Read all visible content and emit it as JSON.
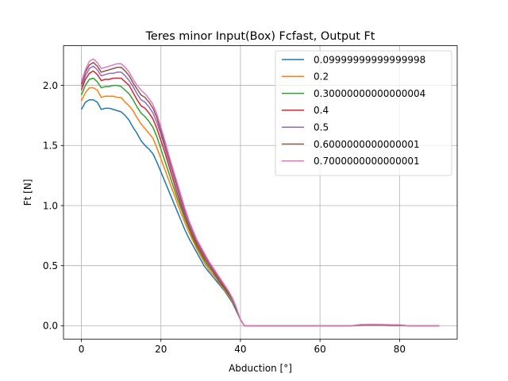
{
  "chart_data": {
    "type": "line",
    "title": "Teres minor Input(Box) Fcfast, Output Ft",
    "xlabel": "Abduction [°]",
    "ylabel": "Ft [N]",
    "xlim": [
      -4.5,
      94.5
    ],
    "ylim": [
      -0.111,
      2.33
    ],
    "xticks": [
      0,
      20,
      40,
      60,
      80
    ],
    "xtick_labels": [
      "0",
      "20",
      "40",
      "60",
      "80"
    ],
    "yticks": [
      0.0,
      0.5,
      1.0,
      1.5,
      2.0
    ],
    "ytick_labels": [
      "0.0",
      "0.5",
      "1.0",
      "1.5",
      "2.0"
    ],
    "grid": true,
    "legend_position": "top-right",
    "x": [
      0,
      1,
      2,
      3,
      4,
      5,
      6,
      7,
      8,
      9,
      10,
      11,
      12,
      13,
      14,
      15,
      16,
      17,
      18,
      19,
      20,
      21,
      22,
      23,
      24,
      25,
      26,
      27,
      28,
      29,
      30,
      31,
      32,
      33,
      34,
      35,
      36,
      37,
      38,
      39,
      40,
      41,
      45,
      50,
      55,
      60,
      65,
      68,
      70,
      72,
      74,
      76,
      78,
      80,
      82,
      85,
      90
    ],
    "series": [
      {
        "name": "0.09999999999999998",
        "color": "#1f77b4",
        "values": [
          1.8,
          1.86,
          1.88,
          1.88,
          1.86,
          1.8,
          1.81,
          1.81,
          1.8,
          1.79,
          1.78,
          1.75,
          1.71,
          1.65,
          1.6,
          1.54,
          1.5,
          1.47,
          1.43,
          1.36,
          1.28,
          1.2,
          1.12,
          1.04,
          0.96,
          0.88,
          0.8,
          0.73,
          0.67,
          0.61,
          0.55,
          0.49,
          0.45,
          0.41,
          0.37,
          0.33,
          0.29,
          0.24,
          0.19,
          0.12,
          0.05,
          0.0,
          0.0,
          0.0,
          0.0,
          0.0,
          0.0,
          0.0,
          0.003,
          0.005,
          0.005,
          0.004,
          0.002,
          0.002,
          0.0,
          0.0,
          0.0
        ]
      },
      {
        "name": "0.2",
        "color": "#ff7f0e",
        "values": [
          1.87,
          1.94,
          1.98,
          1.98,
          1.96,
          1.9,
          1.91,
          1.91,
          1.91,
          1.9,
          1.9,
          1.86,
          1.83,
          1.79,
          1.73,
          1.68,
          1.64,
          1.6,
          1.56,
          1.48,
          1.39,
          1.3,
          1.21,
          1.12,
          1.03,
          0.94,
          0.86,
          0.78,
          0.71,
          0.64,
          0.58,
          0.52,
          0.47,
          0.43,
          0.39,
          0.34,
          0.3,
          0.25,
          0.2,
          0.13,
          0.05,
          0.0,
          0.0,
          0.0,
          0.0,
          0.0,
          0.0,
          0.0,
          0.004,
          0.007,
          0.007,
          0.005,
          0.003,
          0.003,
          0.0,
          0.0,
          0.0
        ]
      },
      {
        "name": "0.30000000000000004",
        "color": "#2ca02c",
        "values": [
          1.92,
          2.0,
          2.05,
          2.06,
          2.03,
          1.98,
          1.99,
          1.99,
          2.0,
          2.0,
          1.99,
          1.96,
          1.93,
          1.88,
          1.82,
          1.77,
          1.74,
          1.7,
          1.65,
          1.57,
          1.47,
          1.37,
          1.27,
          1.17,
          1.07,
          0.98,
          0.89,
          0.81,
          0.73,
          0.66,
          0.6,
          0.54,
          0.49,
          0.45,
          0.4,
          0.35,
          0.31,
          0.26,
          0.21,
          0.13,
          0.05,
          0.0,
          0.0,
          0.0,
          0.0,
          0.0,
          0.0,
          0.0,
          0.005,
          0.008,
          0.008,
          0.006,
          0.004,
          0.004,
          0.0,
          0.0,
          0.0
        ]
      },
      {
        "name": "0.4",
        "color": "#d62728",
        "values": [
          1.96,
          2.05,
          2.1,
          2.12,
          2.09,
          2.04,
          2.05,
          2.05,
          2.06,
          2.06,
          2.06,
          2.03,
          2.0,
          1.94,
          1.88,
          1.83,
          1.81,
          1.77,
          1.72,
          1.64,
          1.54,
          1.44,
          1.33,
          1.22,
          1.11,
          1.01,
          0.92,
          0.83,
          0.75,
          0.68,
          0.62,
          0.56,
          0.51,
          0.46,
          0.41,
          0.36,
          0.32,
          0.27,
          0.22,
          0.14,
          0.05,
          0.0,
          0.0,
          0.0,
          0.0,
          0.0,
          0.0,
          0.0,
          0.006,
          0.009,
          0.009,
          0.007,
          0.005,
          0.005,
          0.0,
          0.0,
          0.0
        ]
      },
      {
        "name": "0.5",
        "color": "#9467bd",
        "values": [
          1.99,
          2.08,
          2.14,
          2.16,
          2.13,
          2.08,
          2.09,
          2.1,
          2.1,
          2.11,
          2.11,
          2.08,
          2.04,
          1.99,
          1.93,
          1.88,
          1.86,
          1.82,
          1.77,
          1.69,
          1.59,
          1.48,
          1.37,
          1.26,
          1.15,
          1.04,
          0.94,
          0.85,
          0.77,
          0.7,
          0.64,
          0.58,
          0.52,
          0.47,
          0.42,
          0.37,
          0.33,
          0.28,
          0.22,
          0.14,
          0.05,
          0.0,
          0.0,
          0.0,
          0.0,
          0.0,
          0.0,
          0.0,
          0.007,
          0.01,
          0.01,
          0.008,
          0.006,
          0.006,
          0.0,
          0.0,
          0.0
        ]
      },
      {
        "name": "0.6000000000000001",
        "color": "#8c564b",
        "values": [
          2.01,
          2.11,
          2.17,
          2.19,
          2.16,
          2.11,
          2.12,
          2.13,
          2.14,
          2.15,
          2.15,
          2.12,
          2.08,
          2.02,
          1.97,
          1.92,
          1.9,
          1.86,
          1.81,
          1.73,
          1.62,
          1.51,
          1.4,
          1.29,
          1.18,
          1.07,
          0.96,
          0.87,
          0.79,
          0.71,
          0.65,
          0.59,
          0.53,
          0.48,
          0.43,
          0.38,
          0.33,
          0.28,
          0.23,
          0.14,
          0.05,
          0.0,
          0.0,
          0.0,
          0.0,
          0.0,
          0.0,
          0.0,
          0.008,
          0.011,
          0.011,
          0.009,
          0.007,
          0.007,
          0.0,
          0.0,
          0.0
        ]
      },
      {
        "name": "0.7000000000000001",
        "color": "#e377c2",
        "values": [
          2.03,
          2.13,
          2.2,
          2.22,
          2.19,
          2.14,
          2.15,
          2.16,
          2.17,
          2.18,
          2.18,
          2.15,
          2.11,
          2.05,
          2.0,
          1.96,
          1.93,
          1.89,
          1.84,
          1.76,
          1.65,
          1.54,
          1.42,
          1.31,
          1.2,
          1.09,
          0.98,
          0.88,
          0.8,
          0.72,
          0.66,
          0.6,
          0.54,
          0.49,
          0.44,
          0.39,
          0.34,
          0.29,
          0.23,
          0.15,
          0.05,
          0.0,
          0.0,
          0.0,
          0.0,
          0.0,
          0.0,
          0.0,
          0.009,
          0.012,
          0.012,
          0.01,
          0.008,
          0.008,
          0.0,
          0.0,
          0.0
        ]
      }
    ]
  }
}
